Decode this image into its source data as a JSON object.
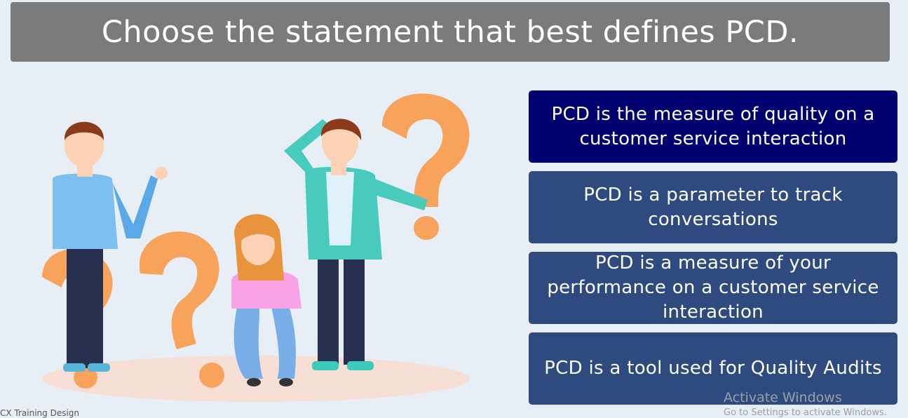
{
  "title": "Choose the statement that best defines PCD.",
  "options": [
    {
      "label": "PCD is the measure of quality on a customer service interaction",
      "state": "selected"
    },
    {
      "label": "PCD is a parameter to track conversations",
      "state": "normal"
    },
    {
      "label": "PCD is a measure of your performance on a customer service interaction",
      "state": "normal"
    },
    {
      "label": "PCD is a tool used for Quality Audits",
      "state": "normal"
    }
  ],
  "footer": {
    "credit": "CX Training Design"
  },
  "watermark": {
    "title": "Activate Windows",
    "subtitle": "Go to Settings to activate Windows."
  },
  "colors": {
    "title_bg": "#797b7d",
    "option_selected": "#00006e",
    "option_normal": "#2f4a7e",
    "question_mark": "#f7a35c",
    "background": "#e8eef6"
  }
}
